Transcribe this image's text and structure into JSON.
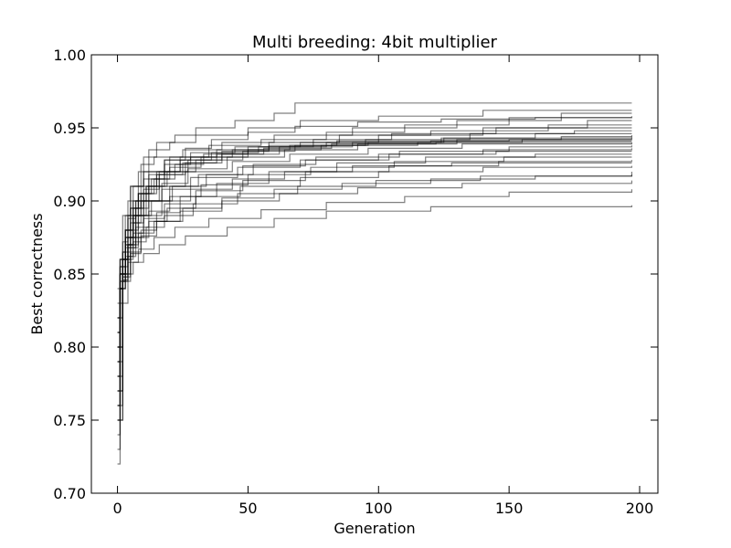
{
  "chart_data": {
    "type": "line",
    "title": "Multi breeding: 4bit multiplier",
    "xlabel": "Generation",
    "ylabel": "Best correctness",
    "xlim": [
      -10,
      207
    ],
    "ylim": [
      0.7,
      1.0
    ],
    "xticks": [
      0,
      50,
      100,
      150,
      200
    ],
    "yticks": [
      0.7,
      0.75,
      0.8,
      0.85,
      0.9,
      0.95,
      1.0
    ],
    "xtick_labels": [
      "0",
      "50",
      "100",
      "150",
      "200"
    ],
    "ytick_labels": [
      "0.70",
      "0.75",
      "0.80",
      "0.85",
      "0.90",
      "0.95",
      "1.00"
    ],
    "line_color": "#000000",
    "line_opacity": 0.5,
    "grid": false,
    "series": [
      {
        "x": [
          0,
          1,
          3,
          6,
          10,
          15,
          22,
          30,
          45,
          60,
          68,
          80,
          120,
          160,
          197
        ],
        "y": [
          0.78,
          0.84,
          0.88,
          0.91,
          0.93,
          0.94,
          0.945,
          0.95,
          0.955,
          0.96,
          0.967,
          0.967,
          0.967,
          0.967,
          0.967
        ]
      },
      {
        "x": [
          0,
          1,
          2,
          4,
          8,
          12,
          20,
          30,
          50,
          70,
          100,
          140,
          197
        ],
        "y": [
          0.76,
          0.82,
          0.86,
          0.9,
          0.92,
          0.935,
          0.94,
          0.945,
          0.95,
          0.955,
          0.958,
          0.962,
          0.962
        ]
      },
      {
        "x": [
          0,
          1,
          3,
          5,
          9,
          14,
          25,
          40,
          60,
          90,
          130,
          170,
          197
        ],
        "y": [
          0.8,
          0.85,
          0.89,
          0.91,
          0.925,
          0.93,
          0.935,
          0.94,
          0.945,
          0.95,
          0.955,
          0.96,
          0.96
        ]
      },
      {
        "x": [
          0,
          2,
          4,
          7,
          12,
          20,
          35,
          55,
          80,
          110,
          150,
          197
        ],
        "y": [
          0.75,
          0.83,
          0.87,
          0.9,
          0.92,
          0.93,
          0.938,
          0.942,
          0.947,
          0.952,
          0.957,
          0.958
        ]
      },
      {
        "x": [
          0,
          1,
          2,
          5,
          10,
          18,
          28,
          45,
          70,
          100,
          140,
          180,
          197
        ],
        "y": [
          0.82,
          0.86,
          0.89,
          0.91,
          0.92,
          0.928,
          0.933,
          0.937,
          0.94,
          0.945,
          0.95,
          0.955,
          0.955
        ]
      },
      {
        "x": [
          0,
          1,
          3,
          6,
          11,
          16,
          24,
          38,
          58,
          85,
          120,
          165,
          197
        ],
        "y": [
          0.79,
          0.84,
          0.87,
          0.89,
          0.91,
          0.92,
          0.93,
          0.935,
          0.94,
          0.945,
          0.948,
          0.952,
          0.952
        ]
      },
      {
        "x": [
          0,
          2,
          5,
          8,
          14,
          22,
          33,
          50,
          75,
          105,
          145,
          197
        ],
        "y": [
          0.77,
          0.85,
          0.88,
          0.905,
          0.915,
          0.925,
          0.932,
          0.937,
          0.942,
          0.946,
          0.95,
          0.95
        ]
      },
      {
        "x": [
          0,
          1,
          3,
          7,
          12,
          19,
          30,
          48,
          68,
          95,
          135,
          175,
          197
        ],
        "y": [
          0.81,
          0.85,
          0.875,
          0.895,
          0.91,
          0.92,
          0.928,
          0.934,
          0.938,
          0.942,
          0.946,
          0.948,
          0.948
        ]
      },
      {
        "x": [
          0,
          1,
          2,
          4,
          9,
          15,
          25,
          40,
          62,
          90,
          125,
          160,
          197
        ],
        "y": [
          0.74,
          0.83,
          0.86,
          0.89,
          0.905,
          0.918,
          0.926,
          0.932,
          0.937,
          0.94,
          0.943,
          0.946,
          0.946
        ]
      },
      {
        "x": [
          0,
          2,
          4,
          6,
          10,
          17,
          27,
          42,
          64,
          92,
          130,
          170,
          197
        ],
        "y": [
          0.8,
          0.845,
          0.87,
          0.885,
          0.9,
          0.912,
          0.922,
          0.93,
          0.935,
          0.939,
          0.942,
          0.944,
          0.944
        ]
      },
      {
        "x": [
          0,
          1,
          3,
          5,
          8,
          13,
          20,
          32,
          50,
          78,
          115,
          155,
          197
        ],
        "y": [
          0.83,
          0.86,
          0.88,
          0.895,
          0.905,
          0.915,
          0.923,
          0.93,
          0.935,
          0.938,
          0.94,
          0.942,
          0.942
        ]
      },
      {
        "x": [
          0,
          1,
          2,
          5,
          9,
          16,
          26,
          44,
          66,
          96,
          132,
          197
        ],
        "y": [
          0.76,
          0.84,
          0.865,
          0.885,
          0.9,
          0.91,
          0.92,
          0.927,
          0.932,
          0.936,
          0.939,
          0.94
        ]
      },
      {
        "x": [
          0,
          2,
          4,
          8,
          13,
          21,
          34,
          52,
          76,
          108,
          150,
          197
        ],
        "y": [
          0.78,
          0.85,
          0.87,
          0.89,
          0.9,
          0.91,
          0.918,
          0.925,
          0.93,
          0.934,
          0.937,
          0.938
        ]
      },
      {
        "x": [
          0,
          1,
          3,
          6,
          10,
          17,
          28,
          46,
          70,
          100,
          140,
          197
        ],
        "y": [
          0.82,
          0.855,
          0.875,
          0.89,
          0.9,
          0.908,
          0.916,
          0.923,
          0.928,
          0.932,
          0.935,
          0.936
        ]
      },
      {
        "x": [
          0,
          1,
          2,
          4,
          7,
          12,
          20,
          31,
          48,
          72,
          104,
          145,
          197
        ],
        "y": [
          0.79,
          0.84,
          0.86,
          0.875,
          0.89,
          0.9,
          0.91,
          0.918,
          0.924,
          0.928,
          0.932,
          0.934,
          0.934
        ]
      },
      {
        "x": [
          0,
          2,
          5,
          9,
          15,
          24,
          38,
          58,
          84,
          118,
          160,
          197
        ],
        "y": [
          0.75,
          0.845,
          0.865,
          0.88,
          0.892,
          0.903,
          0.912,
          0.92,
          0.926,
          0.93,
          0.932,
          0.932
        ]
      },
      {
        "x": [
          0,
          1,
          3,
          7,
          12,
          20,
          32,
          50,
          74,
          106,
          148,
          197
        ],
        "y": [
          0.81,
          0.85,
          0.868,
          0.882,
          0.893,
          0.903,
          0.911,
          0.918,
          0.923,
          0.927,
          0.93,
          0.93
        ]
      },
      {
        "x": [
          0,
          1,
          2,
          5,
          10,
          18,
          30,
          48,
          72,
          104,
          146,
          197
        ],
        "y": [
          0.77,
          0.84,
          0.86,
          0.875,
          0.888,
          0.898,
          0.907,
          0.914,
          0.92,
          0.924,
          0.927,
          0.928
        ]
      },
      {
        "x": [
          0,
          2,
          4,
          7,
          12,
          19,
          30,
          47,
          70,
          100,
          140,
          197
        ],
        "y": [
          0.8,
          0.848,
          0.862,
          0.875,
          0.886,
          0.895,
          0.903,
          0.91,
          0.916,
          0.92,
          0.923,
          0.924
        ]
      },
      {
        "x": [
          0,
          1,
          3,
          6,
          11,
          18,
          29,
          46,
          69,
          99,
          139,
          197
        ],
        "y": [
          0.78,
          0.845,
          0.86,
          0.872,
          0.882,
          0.89,
          0.898,
          0.905,
          0.91,
          0.914,
          0.917,
          0.92
        ]
      },
      {
        "x": [
          0,
          1,
          2,
          4,
          8,
          14,
          24,
          40,
          62,
          92,
          132,
          197
        ],
        "y": [
          0.73,
          0.84,
          0.855,
          0.868,
          0.878,
          0.886,
          0.893,
          0.9,
          0.905,
          0.909,
          0.912,
          0.914
        ]
      },
      {
        "x": [
          0,
          2,
          4,
          8,
          14,
          22,
          35,
          55,
          80,
          110,
          150,
          197
        ],
        "y": [
          0.76,
          0.846,
          0.858,
          0.867,
          0.875,
          0.882,
          0.888,
          0.894,
          0.899,
          0.903,
          0.906,
          0.908
        ]
      },
      {
        "x": [
          0,
          1,
          3,
          6,
          10,
          16,
          26,
          42,
          60,
          80,
          120,
          197
        ],
        "y": [
          0.72,
          0.84,
          0.85,
          0.858,
          0.864,
          0.87,
          0.876,
          0.882,
          0.888,
          0.893,
          0.896,
          0.897
        ]
      },
      {
        "x": [
          0,
          1,
          2,
          3,
          6,
          10,
          18,
          28,
          44,
          66,
          96,
          124,
          150,
          197
        ],
        "y": [
          0.82,
          0.85,
          0.865,
          0.88,
          0.9,
          0.915,
          0.925,
          0.93,
          0.935,
          0.938,
          0.94,
          0.941,
          0.942,
          0.943
        ]
      },
      {
        "x": [
          0,
          1,
          3,
          5,
          9,
          15,
          24,
          36,
          54,
          80,
          120,
          197
        ],
        "y": [
          0.84,
          0.86,
          0.88,
          0.895,
          0.91,
          0.92,
          0.928,
          0.933,
          0.937,
          0.94,
          0.941,
          0.941
        ]
      },
      {
        "x": [
          0,
          2,
          3,
          6,
          10,
          16,
          26,
          38,
          56,
          82,
          122,
          197
        ],
        "y": [
          0.79,
          0.85,
          0.875,
          0.895,
          0.908,
          0.918,
          0.926,
          0.932,
          0.936,
          0.939,
          0.94,
          0.94
        ]
      },
      {
        "x": [
          0,
          1,
          2,
          4,
          7,
          11,
          18,
          27,
          40,
          58,
          84,
          124,
          197
        ],
        "y": [
          0.81,
          0.855,
          0.872,
          0.888,
          0.9,
          0.91,
          0.92,
          0.928,
          0.934,
          0.938,
          0.941,
          0.943,
          0.945
        ]
      },
      {
        "x": [
          0,
          1,
          3,
          6,
          10,
          17,
          28,
          44,
          64,
          90,
          128,
          197
        ],
        "y": [
          0.75,
          0.845,
          0.862,
          0.878,
          0.89,
          0.9,
          0.908,
          0.915,
          0.92,
          0.924,
          0.926,
          0.926
        ]
      },
      {
        "x": [
          0,
          2,
          5,
          9,
          15,
          25,
          40,
          60,
          86,
          120,
          160,
          197
        ],
        "y": [
          0.77,
          0.848,
          0.864,
          0.876,
          0.886,
          0.895,
          0.902,
          0.908,
          0.912,
          0.915,
          0.917,
          0.918
        ]
      },
      {
        "x": [
          0,
          1,
          3,
          5,
          8,
          12,
          18,
          26,
          36,
          50,
          68,
          92,
          124,
          160,
          197
        ],
        "y": [
          0.8,
          0.85,
          0.87,
          0.89,
          0.905,
          0.918,
          0.928,
          0.936,
          0.942,
          0.947,
          0.951,
          0.954,
          0.956,
          0.957,
          0.957
        ]
      }
    ]
  }
}
